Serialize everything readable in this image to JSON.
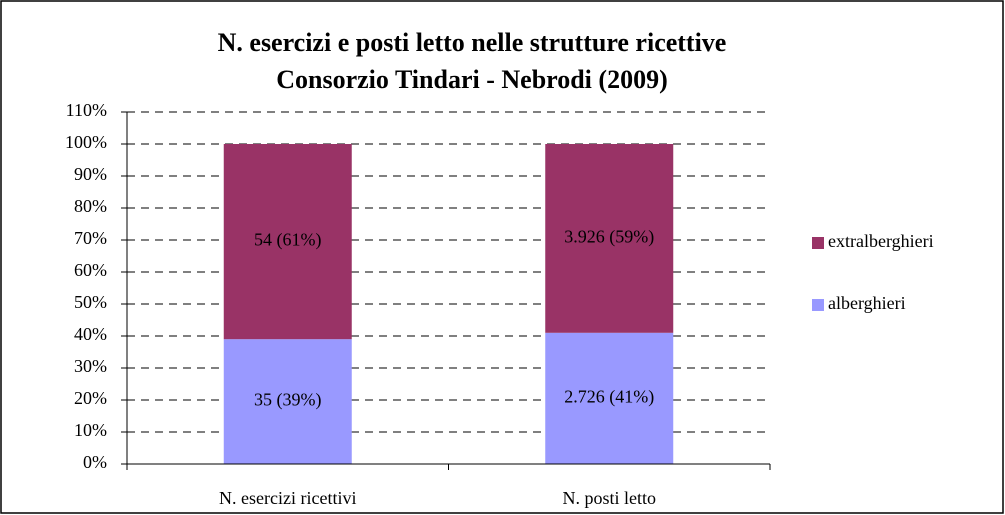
{
  "chart_data": {
    "type": "stacked_bar",
    "title": [
      "N. esercizi e posti letto nelle strutture ricettive",
      "Consorzio Tindari - Nebrodi (2009)"
    ],
    "categories": [
      "N. esercizi ricettivi",
      "N. posti letto"
    ],
    "series": [
      {
        "name": "alberghieri",
        "color": "#9999ff",
        "values": [
          39,
          41
        ],
        "value_labels": [
          "35 (39%)",
          "2.726 (41%)"
        ]
      },
      {
        "name": "extralberghieri",
        "color": "#993366",
        "values": [
          61,
          59
        ],
        "value_labels": [
          "54 (61%)",
          "3.926 (59%)"
        ]
      }
    ],
    "ylim": [
      0,
      110
    ],
    "yticks": [
      {
        "value": 0,
        "label": "0%"
      },
      {
        "value": 10,
        "label": "10%"
      },
      {
        "value": 20,
        "label": "20%"
      },
      {
        "value": 30,
        "label": "30%"
      },
      {
        "value": 40,
        "label": "40%"
      },
      {
        "value": 50,
        "label": "50%"
      },
      {
        "value": 60,
        "label": "60%"
      },
      {
        "value": 70,
        "label": "70%"
      },
      {
        "value": 80,
        "label": "80%"
      },
      {
        "value": 90,
        "label": "90%"
      },
      {
        "value": 100,
        "label": "100%"
      },
      {
        "value": 110,
        "label": "110%"
      }
    ],
    "grid": true,
    "legend": "right"
  }
}
